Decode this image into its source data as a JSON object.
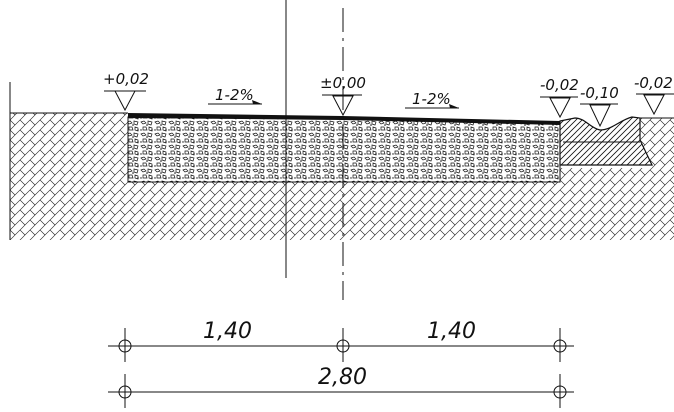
{
  "levels": {
    "left": "+0,02",
    "center": "±0,00",
    "kerb_top": "-0,02",
    "gutter": "-0,10",
    "right": "-0,02"
  },
  "slopes": {
    "left": "1-2%",
    "right": "1-2%"
  },
  "dimensions": {
    "left_half": "1,40",
    "right_half": "1,40",
    "total": "2,80"
  },
  "colors": {
    "ink": "#111111",
    "hatch": "#1a1a1a",
    "asphalt": "#111111"
  }
}
